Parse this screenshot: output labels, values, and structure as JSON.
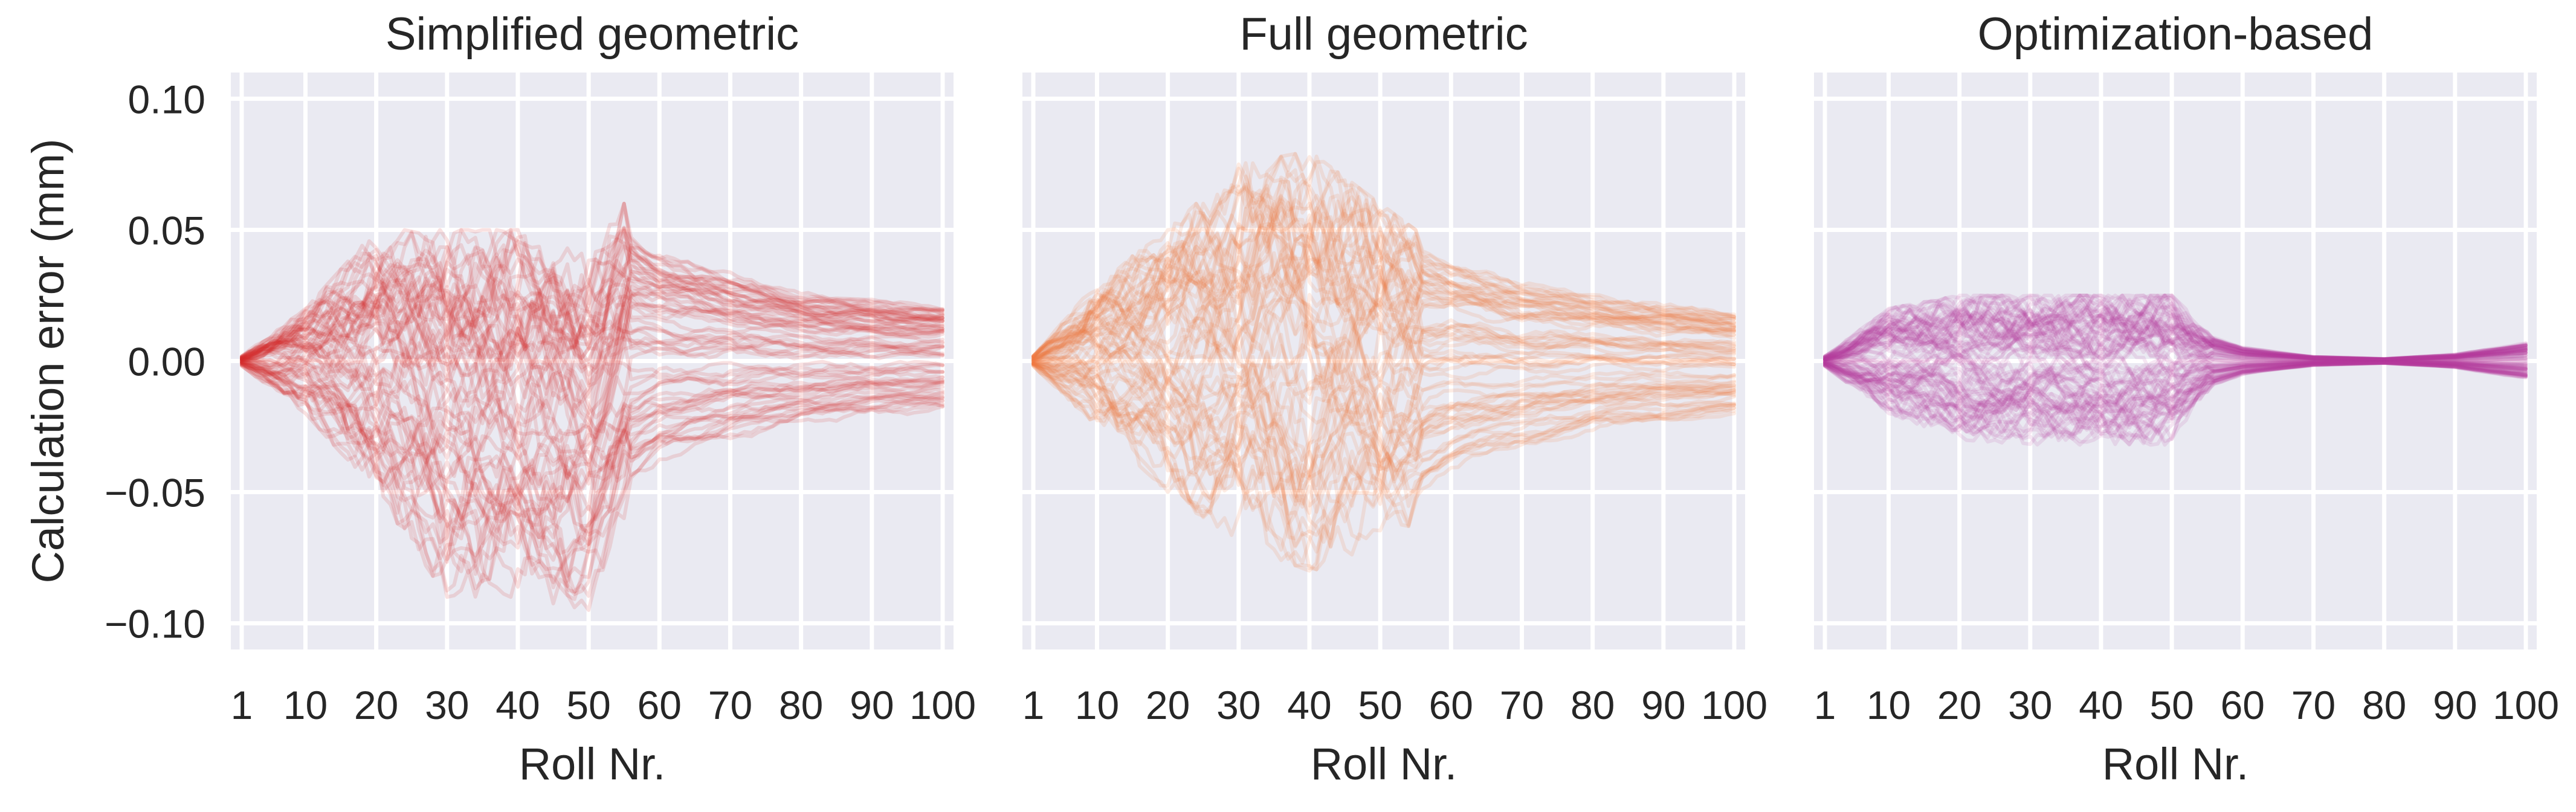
{
  "chart_data": [
    {
      "type": "line",
      "title": "Simplified geometric",
      "xlabel": "Roll Nr.",
      "ylabel": "Calculation error (mm)",
      "xlim": [
        1,
        100
      ],
      "ylim": [
        -0.11,
        0.11
      ],
      "xticks": [
        "1",
        "10",
        "20",
        "30",
        "40",
        "50",
        "60",
        "70",
        "80",
        "90",
        "100"
      ],
      "yticks": [
        "0.10",
        "0.05",
        "0.00",
        "−0.05",
        "−0.10"
      ],
      "color": "#d62728",
      "n_series": 70,
      "envelope": {
        "x": [
          1,
          10,
          20,
          30,
          40,
          50,
          55,
          60,
          70,
          80,
          90,
          100
        ],
        "upper": [
          0.002,
          0.02,
          0.05,
          0.05,
          0.05,
          0.04,
          0.06,
          0.05,
          0.04,
          0.032,
          0.028,
          0.026
        ],
        "lower": [
          -0.002,
          -0.02,
          -0.05,
          -0.09,
          -0.09,
          -0.095,
          -0.06,
          -0.045,
          -0.035,
          -0.028,
          -0.024,
          -0.022
        ],
        "center": [
          0.0,
          0.0,
          -0.01,
          -0.02,
          -0.02,
          -0.03,
          0.0,
          0.0,
          0.0,
          0.0,
          0.0,
          0.0
        ]
      }
    },
    {
      "type": "line",
      "title": "Full geometric",
      "xlabel": "Roll Nr.",
      "ylabel": "",
      "xlim": [
        1,
        100
      ],
      "ylim": [
        -0.11,
        0.11
      ],
      "xticks": [
        "1",
        "10",
        "20",
        "30",
        "40",
        "50",
        "60",
        "70",
        "80",
        "90",
        "100"
      ],
      "yticks": [],
      "color": "#f07b3f",
      "n_series": 70,
      "envelope": {
        "x": [
          1,
          10,
          20,
          30,
          40,
          50,
          55,
          60,
          70,
          80,
          90,
          100
        ],
        "upper": [
          0.002,
          0.03,
          0.05,
          0.075,
          0.08,
          0.06,
          0.05,
          0.045,
          0.035,
          0.03,
          0.025,
          0.022
        ],
        "lower": [
          -0.002,
          -0.025,
          -0.05,
          -0.07,
          -0.08,
          -0.075,
          -0.06,
          -0.05,
          -0.04,
          -0.032,
          -0.028,
          -0.025
        ],
        "center": [
          0.0,
          0.0,
          0.0,
          0.0,
          0.0,
          0.0,
          0.0,
          0.0,
          0.0,
          0.0,
          0.0,
          0.0
        ]
      }
    },
    {
      "type": "line",
      "title": "Optimization-based",
      "xlabel": "Roll Nr.",
      "ylabel": "",
      "xlim": [
        1,
        100
      ],
      "ylim": [
        -0.11,
        0.11
      ],
      "xticks": [
        "1",
        "10",
        "20",
        "30",
        "40",
        "50",
        "60",
        "70",
        "80",
        "90",
        "100"
      ],
      "yticks": [],
      "color": "#b53a9a",
      "n_series": 90,
      "envelope": {
        "x": [
          1,
          10,
          20,
          30,
          40,
          50,
          55,
          60,
          70,
          80,
          90,
          100
        ],
        "upper": [
          0.002,
          0.02,
          0.025,
          0.025,
          0.025,
          0.025,
          0.012,
          0.006,
          0.002,
          0.001,
          0.003,
          0.008
        ],
        "lower": [
          -0.002,
          -0.02,
          -0.03,
          -0.032,
          -0.032,
          -0.032,
          -0.012,
          -0.006,
          -0.002,
          -0.001,
          -0.003,
          -0.008
        ],
        "center": [
          0.0,
          0.0,
          0.0,
          0.0,
          0.0,
          0.0,
          0.0,
          0.0,
          0.0,
          0.0,
          0.0,
          0.0
        ]
      }
    }
  ]
}
